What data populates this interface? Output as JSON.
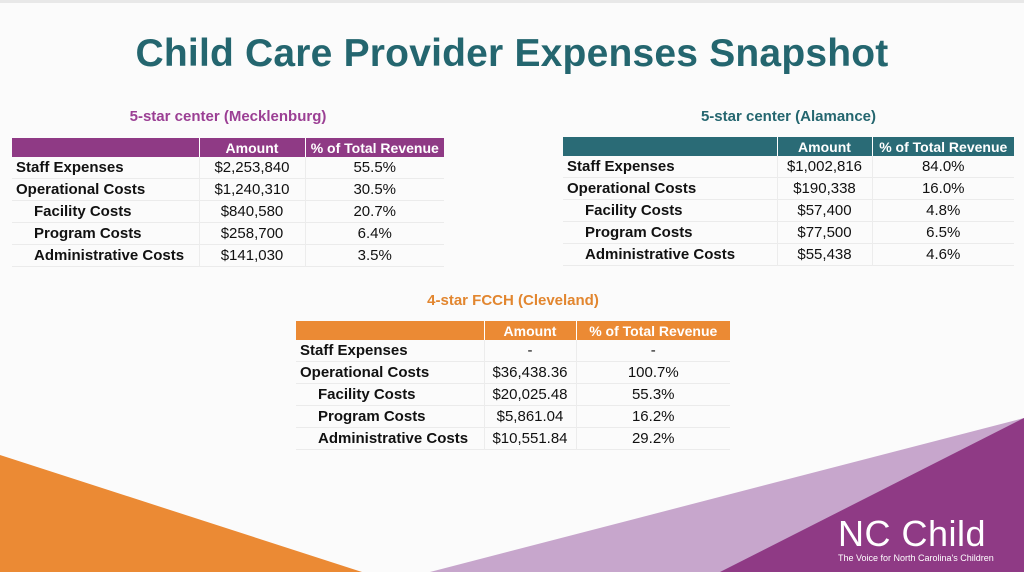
{
  "slide": {
    "title": "Child Care Provider Expenses Snapshot"
  },
  "tables": [
    {
      "title": "5-star center (Mecklenburg)",
      "headers": [
        "",
        "Amount",
        "% of Total Revenue"
      ],
      "rows": [
        {
          "label": "Staff Expenses",
          "amount": "$2,253,840",
          "percent": "55.5%"
        },
        {
          "label": "Operational Costs",
          "amount": "$1,240,310",
          "percent": "30.5%"
        },
        {
          "label": "Facility Costs",
          "amount": "$840,580",
          "percent": "20.7%"
        },
        {
          "label": "Program Costs",
          "amount": "$258,700",
          "percent": "6.4%"
        },
        {
          "label": "Administrative Costs",
          "amount": "$141,030",
          "percent": "3.5%"
        }
      ]
    },
    {
      "title": "5-star center (Alamance)",
      "headers": [
        "",
        "Amount",
        "% of Total Revenue"
      ],
      "rows": [
        {
          "label": "Staff Expenses",
          "amount": "$1,002,816",
          "percent": "84.0%"
        },
        {
          "label": "Operational Costs",
          "amount": "$190,338",
          "percent": "16.0%"
        },
        {
          "label": "Facility Costs",
          "amount": "$57,400",
          "percent": "4.8%"
        },
        {
          "label": "Program Costs",
          "amount": "$77,500",
          "percent": "6.5%"
        },
        {
          "label": "Administrative Costs",
          "amount": "$55,438",
          "percent": "4.6%"
        }
      ]
    },
    {
      "title": "4-star FCCH (Cleveland)",
      "headers": [
        "",
        "Amount",
        "% of Total Revenue"
      ],
      "rows": [
        {
          "label": "Staff Expenses",
          "amount": "-",
          "percent": "-"
        },
        {
          "label": "Operational Costs",
          "amount": "$36,438.36",
          "percent": "100.7%"
        },
        {
          "label": "Facility Costs",
          "amount": "$20,025.48",
          "percent": "55.3%"
        },
        {
          "label": "Program Costs",
          "amount": "$5,861.04",
          "percent": "16.2%"
        },
        {
          "label": "Administrative Costs",
          "amount": "$10,551.84",
          "percent": "29.2%"
        }
      ]
    }
  ],
  "brand": {
    "name": "NC Child",
    "tagline": "The Voice for North Carolina's Children"
  },
  "colors": {
    "title": "#24666f",
    "purple": "#8f3a85",
    "teal": "#2a6b76",
    "orange": "#eb8a34",
    "light_purple": "#c7a6cc"
  }
}
